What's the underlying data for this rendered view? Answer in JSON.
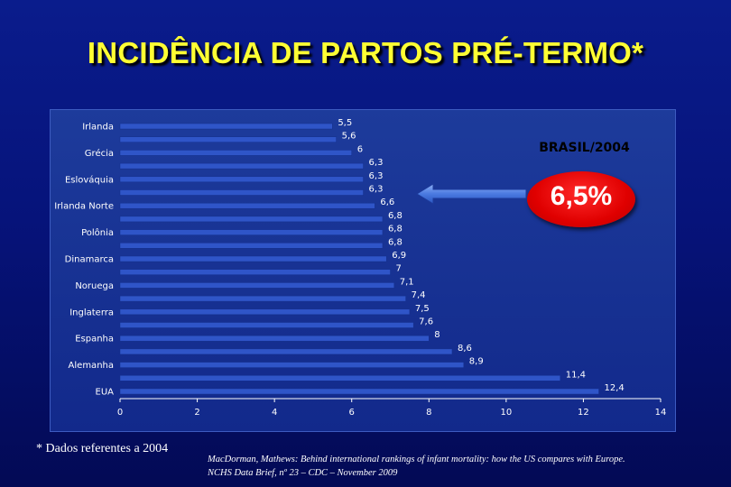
{
  "slide": {
    "title": "INCIDÊNCIA DE PARTOS PRÉ-TERMO*",
    "footnote": "* Dados referentes a 2004",
    "source_line1": "MacDorman, Mathews: Behind international rankings of infant mortality: how the US compares with Europe.",
    "source_line2": "NCHS Data Brief, nº 23 – CDC – November 2009"
  },
  "highlight": {
    "label": "BRASIL/2004",
    "value_text": "6,5%",
    "value": 6.5,
    "badge_color": "#e00000",
    "arrow_color": "#4a7ae0"
  },
  "chart_data": {
    "type": "bar",
    "orientation": "horizontal",
    "categories": [
      "Irlanda",
      "",
      "Grécia",
      "",
      "Eslováquia",
      "",
      "Irlanda Norte",
      "",
      "Polônia",
      "",
      "Dinamarca",
      "",
      "Noruega",
      "",
      "Inglaterra",
      "",
      "Espanha",
      "",
      "Alemanha",
      "",
      "EUA"
    ],
    "values": [
      5.5,
      5.6,
      6,
      6.3,
      6.3,
      6.3,
      6.6,
      6.8,
      6.8,
      6.8,
      6.9,
      7,
      7.1,
      7.4,
      7.5,
      7.6,
      8,
      8.6,
      8.9,
      11.4,
      12.4
    ],
    "value_labels": [
      "5,5",
      "5,6",
      "6",
      "6,3",
      "6,3",
      "6,3",
      "6,6",
      "6,8",
      "6,8",
      "6,8",
      "6,9",
      "7",
      "7,1",
      "7,4",
      "7,5",
      "7,6",
      "8",
      "8,6",
      "8,9",
      "11,4",
      "12,4"
    ],
    "xlim": [
      0,
      14
    ],
    "x_ticks": [
      "0",
      "2",
      "4",
      "6",
      "8",
      "10",
      "12",
      "14"
    ],
    "title": "",
    "xlabel": "",
    "ylabel": "",
    "grid": false,
    "legend": "none",
    "bar_color": "#2f55c8"
  }
}
